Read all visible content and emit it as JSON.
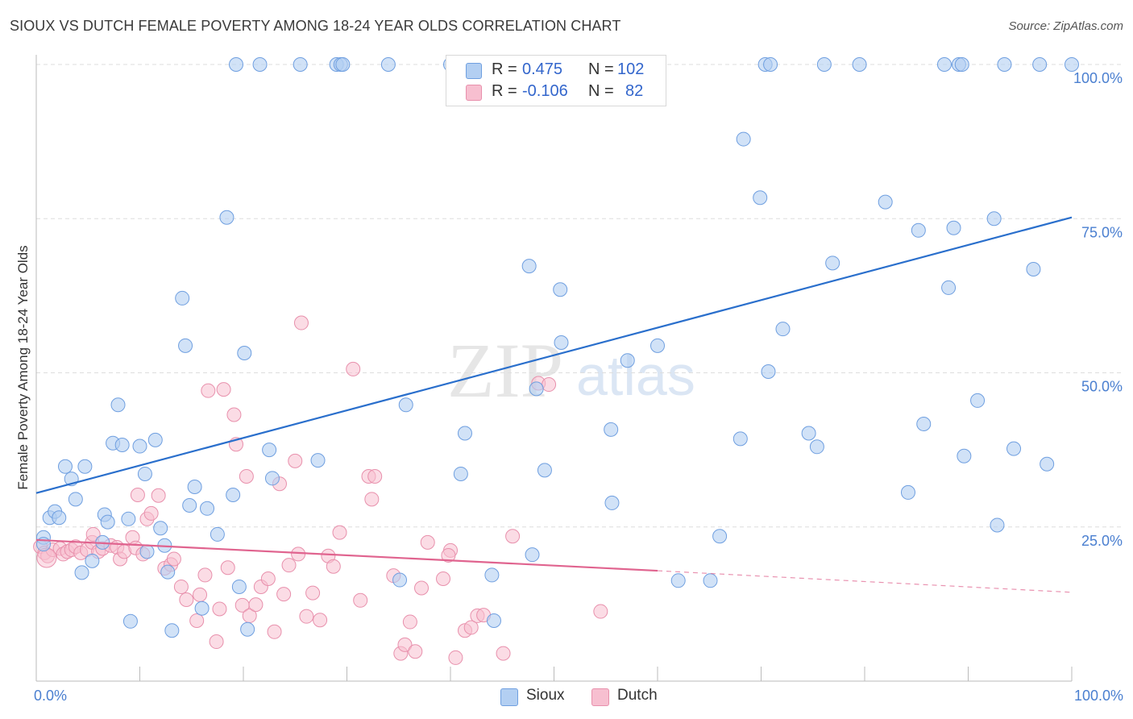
{
  "header": {
    "title": "SIOUX VS DUTCH FEMALE POVERTY AMONG 18-24 YEAR OLDS CORRELATION CHART",
    "source": "Source: ZipAtlas.com"
  },
  "watermark": {
    "zip": "ZIP",
    "atlas": "atlas"
  },
  "legend": {
    "r_label": "R =",
    "n_label": "N =",
    "rows": [
      {
        "r": "0.475",
        "n": "102"
      },
      {
        "r": "-0.106",
        "n": "82"
      }
    ]
  },
  "colors": {
    "sioux_fill": "#b3cff2",
    "sioux_stroke": "#6f9fe0",
    "sioux_line": "#2a6fcc",
    "dutch_fill": "#f7bfd0",
    "dutch_stroke": "#e890ac",
    "dutch_line": "#e0648f",
    "tick_text": "#4a7fd0",
    "grid": "#dedede"
  },
  "chart_data": {
    "type": "scatter",
    "title": "SIOUX VS DUTCH FEMALE POVERTY AMONG 18-24 YEAR OLDS CORRELATION CHART",
    "xlabel": "",
    "ylabel": "Female Poverty Among 18-24 Year Olds",
    "xlim": [
      0,
      100
    ],
    "ylim": [
      0,
      100
    ],
    "x_tick_labels": [
      "0.0%",
      "100.0%"
    ],
    "y_ticks": [
      25,
      50,
      75,
      100
    ],
    "y_tick_labels": [
      "25.0%",
      "50.0%",
      "75.0%",
      "100.0%"
    ],
    "grid": true,
    "legend_position": "bottom-center",
    "series": [
      {
        "name": "Sioux",
        "R": 0.475,
        "N": 102,
        "trend": {
          "x": [
            0,
            100
          ],
          "y": [
            30.5,
            75.2
          ]
        },
        "points": [
          [
            0.7,
            23.3
          ],
          [
            0.7,
            22.2
          ],
          [
            1.3,
            26.5
          ],
          [
            1.8,
            27.5
          ],
          [
            2.2,
            26.5
          ],
          [
            2.8,
            34.8
          ],
          [
            3.4,
            32.8
          ],
          [
            3.8,
            29.5
          ],
          [
            4.4,
            17.6
          ],
          [
            4.7,
            34.8
          ],
          [
            5.4,
            19.5
          ],
          [
            6.4,
            22.5
          ],
          [
            6.6,
            27.0
          ],
          [
            6.9,
            25.8
          ],
          [
            7.4,
            38.6
          ],
          [
            7.9,
            44.8
          ],
          [
            8.3,
            38.3
          ],
          [
            8.9,
            26.3
          ],
          [
            9.1,
            9.7
          ],
          [
            10.0,
            38.1
          ],
          [
            10.5,
            33.6
          ],
          [
            10.7,
            21.0
          ],
          [
            11.5,
            39.1
          ],
          [
            12.0,
            24.8
          ],
          [
            12.4,
            22.0
          ],
          [
            12.7,
            17.7
          ],
          [
            13.1,
            8.2
          ],
          [
            14.1,
            62.1
          ],
          [
            14.4,
            54.4
          ],
          [
            14.8,
            28.5
          ],
          [
            15.3,
            31.5
          ],
          [
            16.0,
            11.8
          ],
          [
            16.5,
            28.0
          ],
          [
            17.5,
            23.8
          ],
          [
            18.4,
            75.2
          ],
          [
            19.0,
            30.2
          ],
          [
            19.3,
            100.0
          ],
          [
            19.6,
            15.3
          ],
          [
            20.1,
            53.2
          ],
          [
            20.4,
            8.4
          ],
          [
            21.6,
            100.0
          ],
          [
            22.5,
            37.5
          ],
          [
            22.8,
            32.9
          ],
          [
            25.5,
            100.0
          ],
          [
            27.2,
            35.8
          ],
          [
            29.0,
            100.0
          ],
          [
            29.4,
            100.0
          ],
          [
            29.6,
            100.0
          ],
          [
            34.0,
            100.0
          ],
          [
            35.1,
            16.4
          ],
          [
            35.7,
            44.8
          ],
          [
            40.0,
            100.0
          ],
          [
            41.0,
            33.6
          ],
          [
            41.4,
            40.2
          ],
          [
            44.0,
            17.2
          ],
          [
            44.2,
            9.8
          ],
          [
            47.5,
            100.0
          ],
          [
            47.6,
            67.3
          ],
          [
            47.9,
            20.5
          ],
          [
            48.3,
            47.4
          ],
          [
            49.1,
            34.2
          ],
          [
            50.4,
            100.0
          ],
          [
            50.6,
            63.5
          ],
          [
            50.7,
            54.9
          ],
          [
            55.4,
            100.0
          ],
          [
            55.5,
            40.8
          ],
          [
            55.6,
            28.9
          ],
          [
            57.1,
            52.0
          ],
          [
            60.0,
            54.4
          ],
          [
            62.0,
            16.3
          ],
          [
            65.1,
            16.3
          ],
          [
            66.0,
            23.5
          ],
          [
            68.0,
            39.3
          ],
          [
            68.3,
            87.9
          ],
          [
            69.9,
            78.4
          ],
          [
            70.4,
            100.0
          ],
          [
            70.7,
            50.2
          ],
          [
            70.9,
            100.0
          ],
          [
            72.1,
            57.1
          ],
          [
            74.6,
            40.2
          ],
          [
            75.4,
            38.0
          ],
          [
            76.1,
            100.0
          ],
          [
            76.9,
            67.8
          ],
          [
            79.5,
            100.0
          ],
          [
            82.0,
            77.7
          ],
          [
            84.2,
            30.6
          ],
          [
            85.2,
            73.1
          ],
          [
            85.7,
            41.7
          ],
          [
            87.7,
            100.0
          ],
          [
            88.1,
            63.8
          ],
          [
            88.6,
            73.5
          ],
          [
            89.1,
            100.0
          ],
          [
            89.4,
            100.0
          ],
          [
            89.6,
            36.5
          ],
          [
            90.9,
            45.5
          ],
          [
            92.8,
            25.3
          ],
          [
            92.5,
            75.0
          ],
          [
            93.5,
            100.0
          ],
          [
            94.4,
            37.7
          ],
          [
            96.3,
            66.8
          ],
          [
            96.9,
            100.0
          ],
          [
            97.6,
            35.2
          ],
          [
            100.0,
            100.0
          ]
        ]
      },
      {
        "name": "Dutch",
        "R": -0.106,
        "N": 82,
        "trend": {
          "x": [
            0,
            60
          ],
          "y": [
            22.9,
            17.9
          ]
        },
        "trend_dashed": {
          "x": [
            60,
            100
          ],
          "y": [
            17.9,
            14.4
          ]
        },
        "points": [
          [
            0.4,
            21.8
          ],
          [
            0.8,
            20.8
          ],
          [
            1.1,
            20.3
          ],
          [
            1.6,
            21.3
          ],
          [
            2.3,
            21.5
          ],
          [
            2.6,
            20.6
          ],
          [
            3.0,
            21.0
          ],
          [
            3.4,
            21.3
          ],
          [
            3.8,
            21.8
          ],
          [
            4.3,
            20.8
          ],
          [
            4.9,
            21.3
          ],
          [
            5.4,
            22.5
          ],
          [
            5.5,
            23.8
          ],
          [
            6.0,
            21.0
          ],
          [
            6.4,
            21.5
          ],
          [
            7.2,
            22.0
          ],
          [
            7.8,
            21.7
          ],
          [
            8.1,
            19.8
          ],
          [
            8.5,
            21.0
          ],
          [
            9.3,
            23.3
          ],
          [
            9.6,
            21.6
          ],
          [
            9.8,
            30.2
          ],
          [
            10.3,
            20.6
          ],
          [
            10.7,
            26.3
          ],
          [
            11.1,
            27.2
          ],
          [
            11.8,
            30.1
          ],
          [
            12.4,
            18.3
          ],
          [
            13.0,
            18.9
          ],
          [
            13.3,
            19.8
          ],
          [
            14.0,
            15.3
          ],
          [
            14.5,
            13.2
          ],
          [
            15.5,
            9.8
          ],
          [
            15.8,
            14.0
          ],
          [
            16.3,
            17.2
          ],
          [
            16.6,
            47.1
          ],
          [
            17.4,
            6.4
          ],
          [
            17.7,
            11.7
          ],
          [
            18.1,
            47.3
          ],
          [
            18.5,
            18.4
          ],
          [
            19.1,
            43.2
          ],
          [
            19.3,
            38.4
          ],
          [
            19.9,
            12.3
          ],
          [
            20.3,
            33.2
          ],
          [
            20.6,
            10.6
          ],
          [
            21.2,
            12.4
          ],
          [
            21.7,
            15.3
          ],
          [
            22.4,
            16.6
          ],
          [
            23.0,
            8.0
          ],
          [
            23.5,
            32.0
          ],
          [
            23.9,
            14.1
          ],
          [
            24.4,
            18.8
          ],
          [
            25.0,
            35.7
          ],
          [
            25.3,
            20.6
          ],
          [
            25.6,
            58.1
          ],
          [
            26.1,
            10.5
          ],
          [
            26.7,
            14.3
          ],
          [
            27.4,
            9.9
          ],
          [
            28.2,
            20.3
          ],
          [
            28.7,
            18.6
          ],
          [
            29.3,
            24.1
          ],
          [
            30.6,
            50.6
          ],
          [
            31.3,
            13.1
          ],
          [
            32.1,
            33.2
          ],
          [
            32.4,
            29.5
          ],
          [
            32.7,
            33.2
          ],
          [
            34.5,
            17.1
          ],
          [
            35.2,
            4.5
          ],
          [
            35.6,
            5.9
          ],
          [
            36.1,
            9.6
          ],
          [
            36.6,
            4.8
          ],
          [
            37.2,
            15.1
          ],
          [
            37.8,
            22.5
          ],
          [
            39.3,
            16.6
          ],
          [
            40.0,
            21.2
          ],
          [
            39.8,
            20.4
          ],
          [
            40.5,
            3.8
          ],
          [
            41.4,
            8.2
          ],
          [
            42.0,
            8.7
          ],
          [
            42.6,
            10.6
          ],
          [
            43.2,
            10.7
          ],
          [
            45.1,
            4.5
          ],
          [
            46.0,
            23.5
          ],
          [
            48.5,
            48.3
          ],
          [
            49.5,
            48.1
          ],
          [
            54.5,
            11.3
          ]
        ]
      }
    ]
  }
}
